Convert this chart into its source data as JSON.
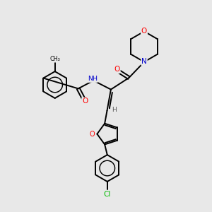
{
  "bg_color": "#e8e8e8",
  "atom_colors": {
    "C": "#000000",
    "N": "#0000cc",
    "O": "#ff0000",
    "Cl": "#00bb00",
    "H": "#555555"
  },
  "bond_color": "#000000",
  "lw": 1.4
}
